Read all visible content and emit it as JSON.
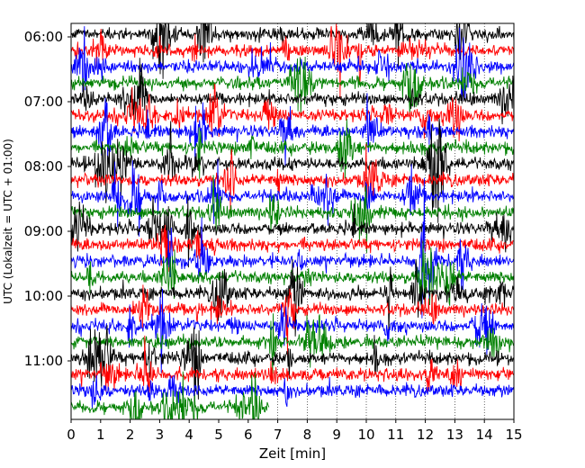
{
  "chart_data": {
    "type": "line",
    "title": "",
    "xlabel": "Zeit  [min]",
    "ylabel": "UTC (Lokalzeit = UTC + 01:00)",
    "xlim": [
      0,
      15
    ],
    "x_ticks": [
      "0",
      "1",
      "2",
      "3",
      "4",
      "5",
      "6",
      "7",
      "8",
      "9",
      "10",
      "11",
      "12",
      "13",
      "14",
      "15"
    ],
    "y_ticks": [
      "06:00",
      "07:00",
      "08:00",
      "09:00",
      "10:00",
      "11:00"
    ],
    "first_trace": "06:00",
    "trace_interval_min": 15,
    "colors_cycle": [
      "#000000",
      "#ff0000",
      "#0000ff",
      "#008000"
    ],
    "traces": [
      {
        "start": "06:00",
        "color": "#000000",
        "end_min": 15
      },
      {
        "start": "06:15",
        "color": "#ff0000",
        "end_min": 15
      },
      {
        "start": "06:30",
        "color": "#0000ff",
        "end_min": 15
      },
      {
        "start": "06:45",
        "color": "#008000",
        "end_min": 15
      },
      {
        "start": "07:00",
        "color": "#000000",
        "end_min": 15
      },
      {
        "start": "07:15",
        "color": "#ff0000",
        "end_min": 15
      },
      {
        "start": "07:30",
        "color": "#0000ff",
        "end_min": 15
      },
      {
        "start": "07:45",
        "color": "#008000",
        "end_min": 15
      },
      {
        "start": "08:00",
        "color": "#000000",
        "end_min": 15
      },
      {
        "start": "08:15",
        "color": "#ff0000",
        "end_min": 15
      },
      {
        "start": "08:30",
        "color": "#0000ff",
        "end_min": 15
      },
      {
        "start": "08:45",
        "color": "#008000",
        "end_min": 15
      },
      {
        "start": "09:00",
        "color": "#000000",
        "end_min": 15
      },
      {
        "start": "09:15",
        "color": "#ff0000",
        "end_min": 15
      },
      {
        "start": "09:30",
        "color": "#0000ff",
        "end_min": 15
      },
      {
        "start": "09:45",
        "color": "#008000",
        "end_min": 15
      },
      {
        "start": "10:00",
        "color": "#000000",
        "end_min": 15
      },
      {
        "start": "10:15",
        "color": "#ff0000",
        "end_min": 15
      },
      {
        "start": "10:30",
        "color": "#0000ff",
        "end_min": 15
      },
      {
        "start": "10:45",
        "color": "#008000",
        "end_min": 15
      },
      {
        "start": "11:00",
        "color": "#000000",
        "end_min": 15
      },
      {
        "start": "11:15",
        "color": "#ff0000",
        "end_min": 15
      },
      {
        "start": "11:30",
        "color": "#0000ff",
        "end_min": 15
      },
      {
        "start": "11:45",
        "color": "#008000",
        "end_min": 6.7
      }
    ],
    "vertical_gridlines_dotted_after_min": 6.7
  }
}
